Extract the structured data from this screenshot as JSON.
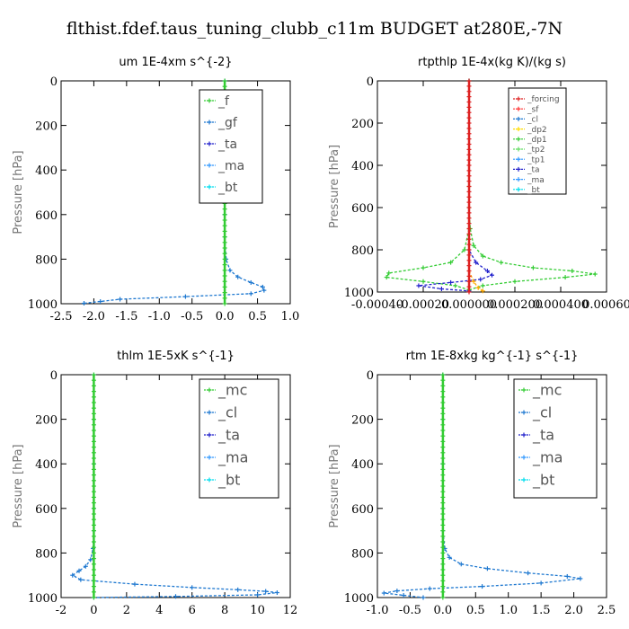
{
  "suptitle": "flthist.fdef.taus_tuning_clubb_c11m  BUDGET at280E,-7N",
  "chart_data": [
    {
      "type": "line",
      "title": "um  1E-4xm s^{-2}",
      "ylabel": "Pressure [hPa]",
      "ylim": [
        1000,
        0
      ],
      "yticks": [
        0,
        200,
        400,
        600,
        800,
        1000
      ],
      "xlim": [
        -2.5,
        1.0
      ],
      "xticks": [
        "-2.5",
        "-2.0",
        "-1.5",
        "-1.0",
        "-0.5",
        "0.0",
        "0.5",
        "1.0"
      ],
      "xtick_values": [
        -2.5,
        -2.0,
        -1.5,
        -1.0,
        -0.5,
        0.0,
        0.5,
        1.0
      ],
      "legend": [
        "_f",
        "_gf",
        "_ta",
        "_ma",
        "_bt"
      ],
      "series": [
        {
          "name": "_gf",
          "color": "#1e78d0",
          "points": [
            [
              0.0,
              0
            ],
            [
              0.0,
              200
            ],
            [
              0.0,
              400
            ],
            [
              0.0,
              600
            ],
            [
              0.0,
              700
            ],
            [
              0.02,
              800
            ],
            [
              0.08,
              850
            ],
            [
              0.2,
              880
            ],
            [
              0.4,
              905
            ],
            [
              0.58,
              925
            ],
            [
              0.6,
              940
            ],
            [
              0.4,
              955
            ],
            [
              -0.6,
              968
            ],
            [
              -1.6,
              980
            ],
            [
              -1.9,
              990
            ],
            [
              -2.15,
              998
            ]
          ]
        },
        {
          "name": "_f",
          "color": "#33cc33",
          "points": [
            [
              0.0,
              0
            ],
            [
              0.0,
              250
            ],
            [
              0.0,
              500
            ],
            [
              0.0,
              750
            ],
            [
              0.0,
              1000
            ]
          ]
        }
      ]
    },
    {
      "type": "line",
      "title": "rtpthlp  1E-4x(kg K)/(kg s)",
      "ylabel": "Pressure [hPa]",
      "ylim": [
        1000,
        0
      ],
      "yticks": [
        0,
        200,
        400,
        600,
        800,
        1000
      ],
      "xlim": [
        -0.0004,
        0.0006
      ],
      "xticks": [
        "-0.00040",
        "-0.00020",
        "0.000000",
        "0.000200",
        "0.000400",
        "0.00060"
      ],
      "xtick_values": [
        -0.0004,
        -0.0002,
        0.0,
        0.0002,
        0.0004,
        0.0006
      ],
      "legend": [
        "_forcing",
        "_sf",
        "_cl",
        "_dp2",
        "_dp1",
        "_tp2",
        "_tp1",
        "_ta",
        "_ma",
        "_bt"
      ],
      "series": [
        {
          "name": "_tp2",
          "color": "#33cc33",
          "points": [
            [
              0.0,
              0
            ],
            [
              0.0,
              500
            ],
            [
              0.0,
              600
            ],
            [
              5e-06,
              700
            ],
            [
              2e-05,
              780
            ],
            [
              6e-05,
              830
            ],
            [
              0.00014,
              860
            ],
            [
              0.00028,
              885
            ],
            [
              0.00045,
              900
            ],
            [
              0.00055,
              915
            ],
            [
              0.00042,
              930
            ],
            [
              0.0002,
              950
            ],
            [
              6e-05,
              970
            ],
            [
              0.0,
              990
            ]
          ]
        },
        {
          "name": "_dp1",
          "color": "#33cc33",
          "points": [
            [
              0.0,
              0
            ],
            [
              0.0,
              700
            ],
            [
              -2e-05,
              800
            ],
            [
              -8e-05,
              860
            ],
            [
              -0.0002,
              885
            ],
            [
              -0.00035,
              910
            ],
            [
              -0.00036,
              930
            ],
            [
              -0.0002,
              950
            ],
            [
              -6e-05,
              970
            ],
            [
              0.0,
              990
            ]
          ]
        },
        {
          "name": "_ta",
          "color": "#2222cc",
          "points": [
            [
              0.0,
              0
            ],
            [
              0.0,
              800
            ],
            [
              3e-05,
              860
            ],
            [
              8e-05,
              900
            ],
            [
              0.0001,
              920
            ],
            [
              5e-05,
              940
            ],
            [
              -8e-05,
              955
            ],
            [
              -0.00022,
              970
            ],
            [
              -0.00012,
              985
            ],
            [
              0.0,
              995
            ]
          ]
        },
        {
          "name": "_cl",
          "color": "#ffaa00",
          "points": [
            [
              0.0,
              900
            ],
            [
              2e-05,
              950
            ],
            [
              4e-05,
              980
            ],
            [
              6e-05,
              995
            ]
          ]
        },
        {
          "name": "_forcing",
          "color": "#dd2222",
          "points": [
            [
              0.0,
              0
            ],
            [
              0.0,
              250
            ],
            [
              0.0,
              500
            ],
            [
              0.0,
              750
            ],
            [
              0.0,
              1000
            ]
          ]
        }
      ]
    },
    {
      "type": "line",
      "title": "thlm  1E-5xK s^{-1}",
      "ylabel": "Pressure [hPa]",
      "ylim": [
        1000,
        0
      ],
      "yticks": [
        0,
        200,
        400,
        600,
        800,
        1000
      ],
      "xlim": [
        -2,
        12
      ],
      "xticks": [
        "-2",
        "0",
        "2",
        "4",
        "6",
        "8",
        "10",
        "12"
      ],
      "xtick_values": [
        -2,
        0,
        2,
        4,
        6,
        8,
        10,
        12
      ],
      "legend": [
        "_mc",
        "_cl",
        "_ta",
        "_ma",
        "_bt"
      ],
      "series": [
        {
          "name": "_cl",
          "color": "#1e78d0",
          "points": [
            [
              0.0,
              0
            ],
            [
              0.0,
              200
            ],
            [
              0.0,
              400
            ],
            [
              0.0,
              600
            ],
            [
              0.0,
              700
            ],
            [
              -0.05,
              780
            ],
            [
              -0.2,
              830
            ],
            [
              -0.5,
              860
            ],
            [
              -0.9,
              880
            ],
            [
              -1.3,
              900
            ],
            [
              -0.8,
              920
            ],
            [
              2.5,
              940
            ],
            [
              6.0,
              955
            ],
            [
              8.8,
              965
            ],
            [
              10.5,
              972
            ],
            [
              11.2,
              978
            ],
            [
              10.0,
              988
            ],
            [
              5.0,
              995
            ],
            [
              0.0,
              1000
            ]
          ]
        },
        {
          "name": "_mc",
          "color": "#33cc33",
          "points": [
            [
              0.0,
              0
            ],
            [
              0.0,
              250
            ],
            [
              0.0,
              500
            ],
            [
              0.0,
              750
            ],
            [
              0.0,
              1000
            ]
          ]
        }
      ]
    },
    {
      "type": "line",
      "title": "rtm  1E-8xkg kg^{-1} s^{-1}",
      "ylabel": "Pressure [hPa]",
      "ylim": [
        1000,
        0
      ],
      "yticks": [
        0,
        200,
        400,
        600,
        800,
        1000
      ],
      "xlim": [
        -1.0,
        2.5
      ],
      "xticks": [
        "-1.0",
        "-0.5",
        "0.0",
        "0.5",
        "1.0",
        "1.5",
        "2.0",
        "2.5"
      ],
      "xtick_values": [
        -1.0,
        -0.5,
        0.0,
        0.5,
        1.0,
        1.5,
        2.0,
        2.5
      ],
      "legend": [
        "_mc",
        "_cl",
        "_ta",
        "_ma",
        "_bt"
      ],
      "series": [
        {
          "name": "_cl",
          "color": "#1e78d0",
          "points": [
            [
              0.0,
              0
            ],
            [
              0.0,
              200
            ],
            [
              0.0,
              400
            ],
            [
              0.0,
              600
            ],
            [
              0.0,
              700
            ],
            [
              0.03,
              780
            ],
            [
              0.1,
              820
            ],
            [
              0.28,
              850
            ],
            [
              0.68,
              870
            ],
            [
              1.3,
              890
            ],
            [
              1.9,
              905
            ],
            [
              2.1,
              915
            ],
            [
              1.5,
              935
            ],
            [
              0.6,
              950
            ],
            [
              -0.2,
              960
            ],
            [
              -0.7,
              970
            ],
            [
              -0.9,
              980
            ],
            [
              -0.6,
              990
            ],
            [
              -0.3,
              1000
            ]
          ]
        },
        {
          "name": "_mc",
          "color": "#33cc33",
          "points": [
            [
              0.0,
              0
            ],
            [
              0.0,
              250
            ],
            [
              0.0,
              500
            ],
            [
              0.0,
              750
            ],
            [
              0.0,
              1000
            ]
          ]
        }
      ]
    }
  ],
  "colors": {
    "_f": "#33cc33",
    "_gf": "#1e78d0",
    "_ta": "#2222cc",
    "_ma": "#3399ff",
    "_bt": "#00ddee",
    "_forcing": "#dd2222",
    "_sf": "#ff3333",
    "_cl": "#1e78d0",
    "_dp2": "#ffdd00",
    "_dp1": "#33cc33",
    "_tp2": "#66dd66",
    "_tp1": "#3399ff",
    "_mc": "#33cc33"
  }
}
